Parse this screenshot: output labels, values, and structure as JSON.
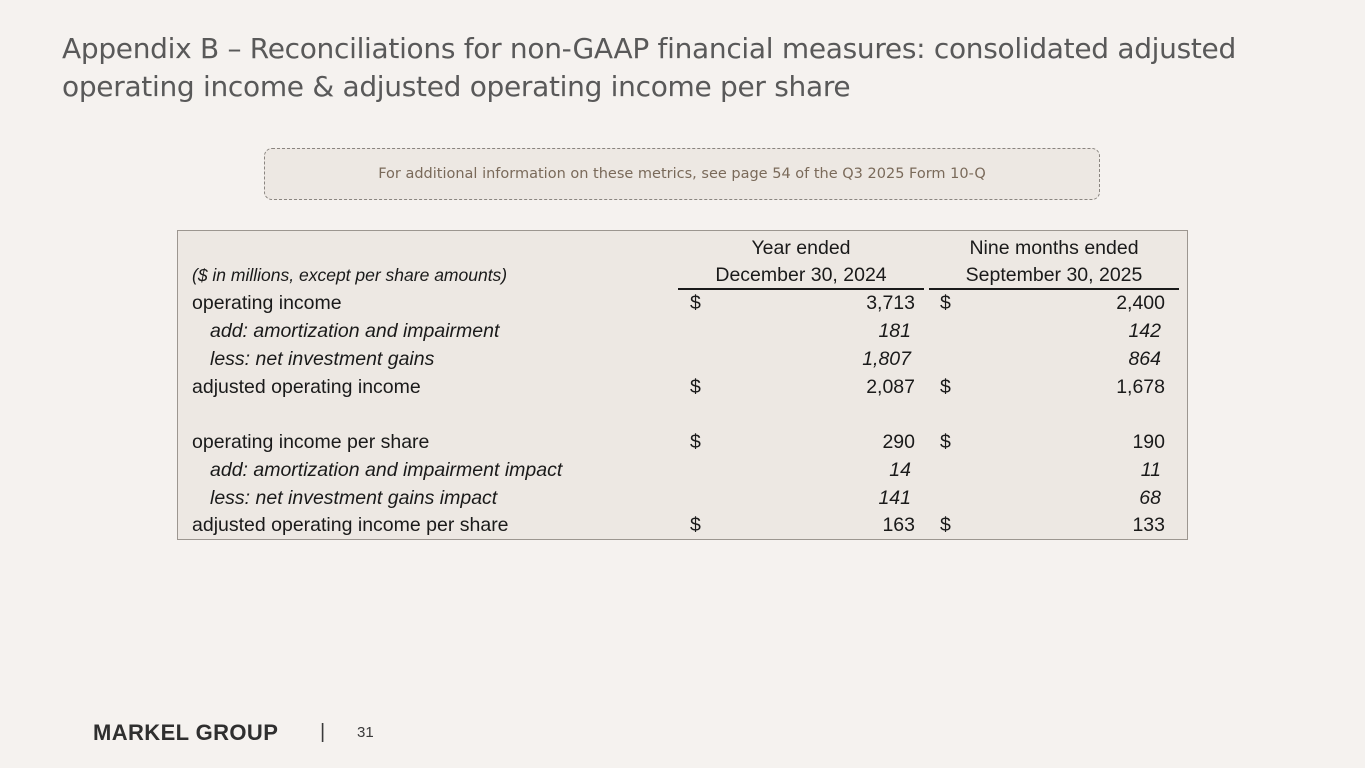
{
  "title": "Appendix B – Reconciliations for non-GAAP financial measures: consolidated adjusted operating income & adjusted operating income per share",
  "note": "For additional information on these metrics, see page 54 of the Q3 2025 Form 10-Q",
  "table": {
    "units": "($ in millions, except per share amounts)",
    "col1": {
      "line1": "Year ended",
      "line2": "December 30, 2024"
    },
    "col2": {
      "line1": "Nine months ended",
      "line2": "September 30, 2025"
    },
    "currency": "$",
    "rows": [
      {
        "label": "operating income",
        "v1": "3,713",
        "v2": "2,400"
      },
      {
        "label": "add: amortization and impairment",
        "v1": "181",
        "v2": "142"
      },
      {
        "label": "less: net investment gains",
        "v1": "1,807",
        "v2": "864"
      },
      {
        "label": "adjusted operating income",
        "v1": "2,087",
        "v2": "1,678"
      },
      {
        "label": "operating income per share",
        "v1": "290",
        "v2": "190"
      },
      {
        "label": "add: amortization and impairment impact",
        "v1": "14",
        "v2": "11"
      },
      {
        "label": "less: net investment gains impact",
        "v1": "141",
        "v2": "68"
      },
      {
        "label": "adjusted operating income per share",
        "v1": "163",
        "v2": "133"
      }
    ]
  },
  "footer": {
    "logo": "MARKEL GROUP",
    "separator": "|",
    "page": "31"
  }
}
